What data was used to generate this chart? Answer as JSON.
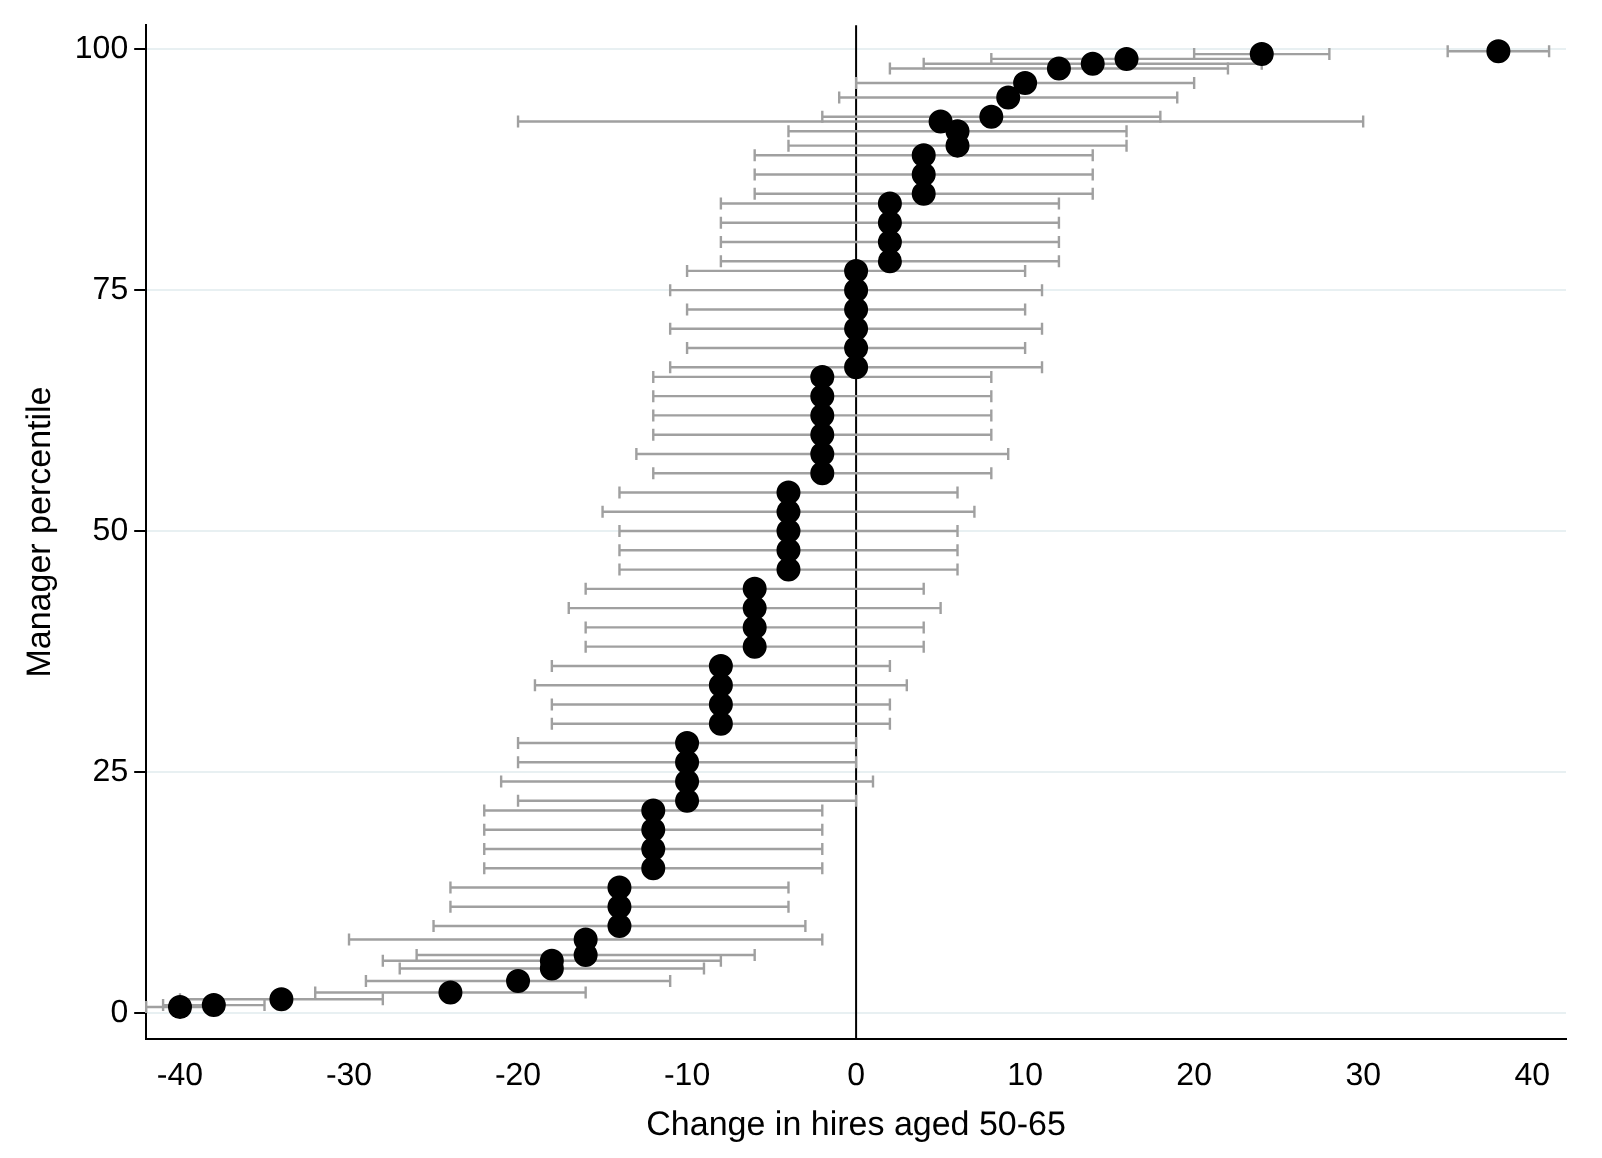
{
  "chart_data": {
    "type": "scatter",
    "xlabel": "Change in hires aged 50-65",
    "ylabel": "Manager percentile",
    "xlim": [
      -42,
      42
    ],
    "xticks": [
      -40,
      -30,
      -20,
      -10,
      0,
      10,
      20,
      30,
      40
    ],
    "ylim": [
      -2.7,
      102.5
    ],
    "yticks": [
      0,
      25,
      50,
      75,
      100
    ],
    "grid": "y",
    "legend": false,
    "marker": "circle",
    "ref_lines": [
      {
        "axis": "x",
        "value": 0,
        "color": "#000000"
      }
    ],
    "series": [
      {
        "color": "#000000",
        "x": [
          -40,
          -38,
          -34,
          -24,
          -20,
          -18,
          -18,
          -16,
          -16,
          -14,
          -14,
          -14,
          -12,
          -12,
          -12,
          -12,
          -10,
          -10,
          -10,
          -10,
          -8,
          -8,
          -8,
          -8,
          -6,
          -6,
          -6,
          -6,
          -4,
          -4,
          -4,
          -4,
          -4,
          -2,
          -2,
          -2,
          -2,
          -2,
          -2,
          0,
          0,
          0,
          0,
          0,
          0,
          2,
          2,
          2,
          2,
          4,
          4,
          4,
          6,
          5,
          6,
          8,
          9,
          10,
          12,
          14,
          16,
          24,
          38
        ],
        "values": [
          0.6,
          0.8,
          1.4,
          2.1,
          3.3,
          4.6,
          5.4,
          6,
          7.6,
          9,
          11,
          13,
          15,
          17,
          19,
          21,
          22,
          24,
          26,
          28,
          30,
          32,
          34,
          36,
          38,
          40,
          42,
          44,
          46,
          48,
          50,
          52,
          54,
          56,
          58,
          60,
          62,
          64,
          66,
          67,
          69,
          71,
          73,
          75,
          77,
          78,
          80,
          82,
          84,
          85,
          87,
          89,
          90,
          92.5,
          91.5,
          93,
          95,
          96.5,
          98,
          98.5,
          99,
          99.5,
          99.8
        ],
        "xerrors": [
          2,
          3,
          6,
          8,
          9,
          9,
          10,
          10,
          14,
          11,
          10,
          10,
          10,
          10,
          10,
          10,
          10,
          11,
          10,
          10,
          10,
          10,
          11,
          10,
          10,
          10,
          11,
          10,
          10,
          10,
          10,
          11,
          10,
          10,
          11,
          10,
          10,
          10,
          10,
          11,
          10,
          11,
          10,
          11,
          10,
          10,
          10,
          10,
          10,
          10,
          10,
          10,
          10,
          25,
          10,
          10,
          10,
          10,
          10,
          10,
          8,
          4,
          3
        ]
      }
    ]
  }
}
